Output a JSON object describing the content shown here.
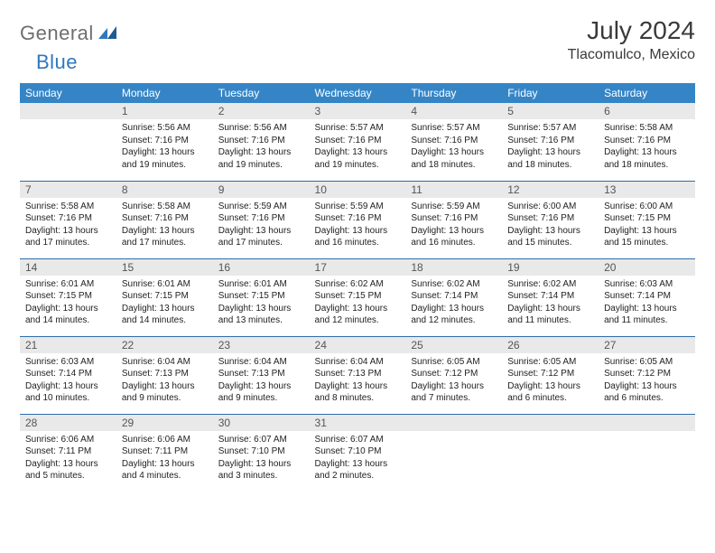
{
  "brand": {
    "part1": "General",
    "part2": "Blue"
  },
  "title": "July 2024",
  "location": "Tlacomulco, Mexico",
  "colors": {
    "header_bg": "#3585c6",
    "header_text": "#ffffff",
    "daynum_bg": "#e9e9e9",
    "row_divider": "#2f6ea8",
    "brand_gray": "#6e6e6e",
    "brand_blue": "#2f78bd"
  },
  "day_names": [
    "Sunday",
    "Monday",
    "Tuesday",
    "Wednesday",
    "Thursday",
    "Friday",
    "Saturday"
  ],
  "weeks": [
    [
      null,
      {
        "n": "1",
        "sunrise": "5:56 AM",
        "sunset": "7:16 PM",
        "daylight": "13 hours and 19 minutes."
      },
      {
        "n": "2",
        "sunrise": "5:56 AM",
        "sunset": "7:16 PM",
        "daylight": "13 hours and 19 minutes."
      },
      {
        "n": "3",
        "sunrise": "5:57 AM",
        "sunset": "7:16 PM",
        "daylight": "13 hours and 19 minutes."
      },
      {
        "n": "4",
        "sunrise": "5:57 AM",
        "sunset": "7:16 PM",
        "daylight": "13 hours and 18 minutes."
      },
      {
        "n": "5",
        "sunrise": "5:57 AM",
        "sunset": "7:16 PM",
        "daylight": "13 hours and 18 minutes."
      },
      {
        "n": "6",
        "sunrise": "5:58 AM",
        "sunset": "7:16 PM",
        "daylight": "13 hours and 18 minutes."
      }
    ],
    [
      {
        "n": "7",
        "sunrise": "5:58 AM",
        "sunset": "7:16 PM",
        "daylight": "13 hours and 17 minutes."
      },
      {
        "n": "8",
        "sunrise": "5:58 AM",
        "sunset": "7:16 PM",
        "daylight": "13 hours and 17 minutes."
      },
      {
        "n": "9",
        "sunrise": "5:59 AM",
        "sunset": "7:16 PM",
        "daylight": "13 hours and 17 minutes."
      },
      {
        "n": "10",
        "sunrise": "5:59 AM",
        "sunset": "7:16 PM",
        "daylight": "13 hours and 16 minutes."
      },
      {
        "n": "11",
        "sunrise": "5:59 AM",
        "sunset": "7:16 PM",
        "daylight": "13 hours and 16 minutes."
      },
      {
        "n": "12",
        "sunrise": "6:00 AM",
        "sunset": "7:16 PM",
        "daylight": "13 hours and 15 minutes."
      },
      {
        "n": "13",
        "sunrise": "6:00 AM",
        "sunset": "7:15 PM",
        "daylight": "13 hours and 15 minutes."
      }
    ],
    [
      {
        "n": "14",
        "sunrise": "6:01 AM",
        "sunset": "7:15 PM",
        "daylight": "13 hours and 14 minutes."
      },
      {
        "n": "15",
        "sunrise": "6:01 AM",
        "sunset": "7:15 PM",
        "daylight": "13 hours and 14 minutes."
      },
      {
        "n": "16",
        "sunrise": "6:01 AM",
        "sunset": "7:15 PM",
        "daylight": "13 hours and 13 minutes."
      },
      {
        "n": "17",
        "sunrise": "6:02 AM",
        "sunset": "7:15 PM",
        "daylight": "13 hours and 12 minutes."
      },
      {
        "n": "18",
        "sunrise": "6:02 AM",
        "sunset": "7:14 PM",
        "daylight": "13 hours and 12 minutes."
      },
      {
        "n": "19",
        "sunrise": "6:02 AM",
        "sunset": "7:14 PM",
        "daylight": "13 hours and 11 minutes."
      },
      {
        "n": "20",
        "sunrise": "6:03 AM",
        "sunset": "7:14 PM",
        "daylight": "13 hours and 11 minutes."
      }
    ],
    [
      {
        "n": "21",
        "sunrise": "6:03 AM",
        "sunset": "7:14 PM",
        "daylight": "13 hours and 10 minutes."
      },
      {
        "n": "22",
        "sunrise": "6:04 AM",
        "sunset": "7:13 PM",
        "daylight": "13 hours and 9 minutes."
      },
      {
        "n": "23",
        "sunrise": "6:04 AM",
        "sunset": "7:13 PM",
        "daylight": "13 hours and 9 minutes."
      },
      {
        "n": "24",
        "sunrise": "6:04 AM",
        "sunset": "7:13 PM",
        "daylight": "13 hours and 8 minutes."
      },
      {
        "n": "25",
        "sunrise": "6:05 AM",
        "sunset": "7:12 PM",
        "daylight": "13 hours and 7 minutes."
      },
      {
        "n": "26",
        "sunrise": "6:05 AM",
        "sunset": "7:12 PM",
        "daylight": "13 hours and 6 minutes."
      },
      {
        "n": "27",
        "sunrise": "6:05 AM",
        "sunset": "7:12 PM",
        "daylight": "13 hours and 6 minutes."
      }
    ],
    [
      {
        "n": "28",
        "sunrise": "6:06 AM",
        "sunset": "7:11 PM",
        "daylight": "13 hours and 5 minutes."
      },
      {
        "n": "29",
        "sunrise": "6:06 AM",
        "sunset": "7:11 PM",
        "daylight": "13 hours and 4 minutes."
      },
      {
        "n": "30",
        "sunrise": "6:07 AM",
        "sunset": "7:10 PM",
        "daylight": "13 hours and 3 minutes."
      },
      {
        "n": "31",
        "sunrise": "6:07 AM",
        "sunset": "7:10 PM",
        "daylight": "13 hours and 2 minutes."
      },
      null,
      null,
      null
    ]
  ],
  "labels": {
    "sunrise": "Sunrise:",
    "sunset": "Sunset:",
    "daylight": "Daylight:"
  }
}
